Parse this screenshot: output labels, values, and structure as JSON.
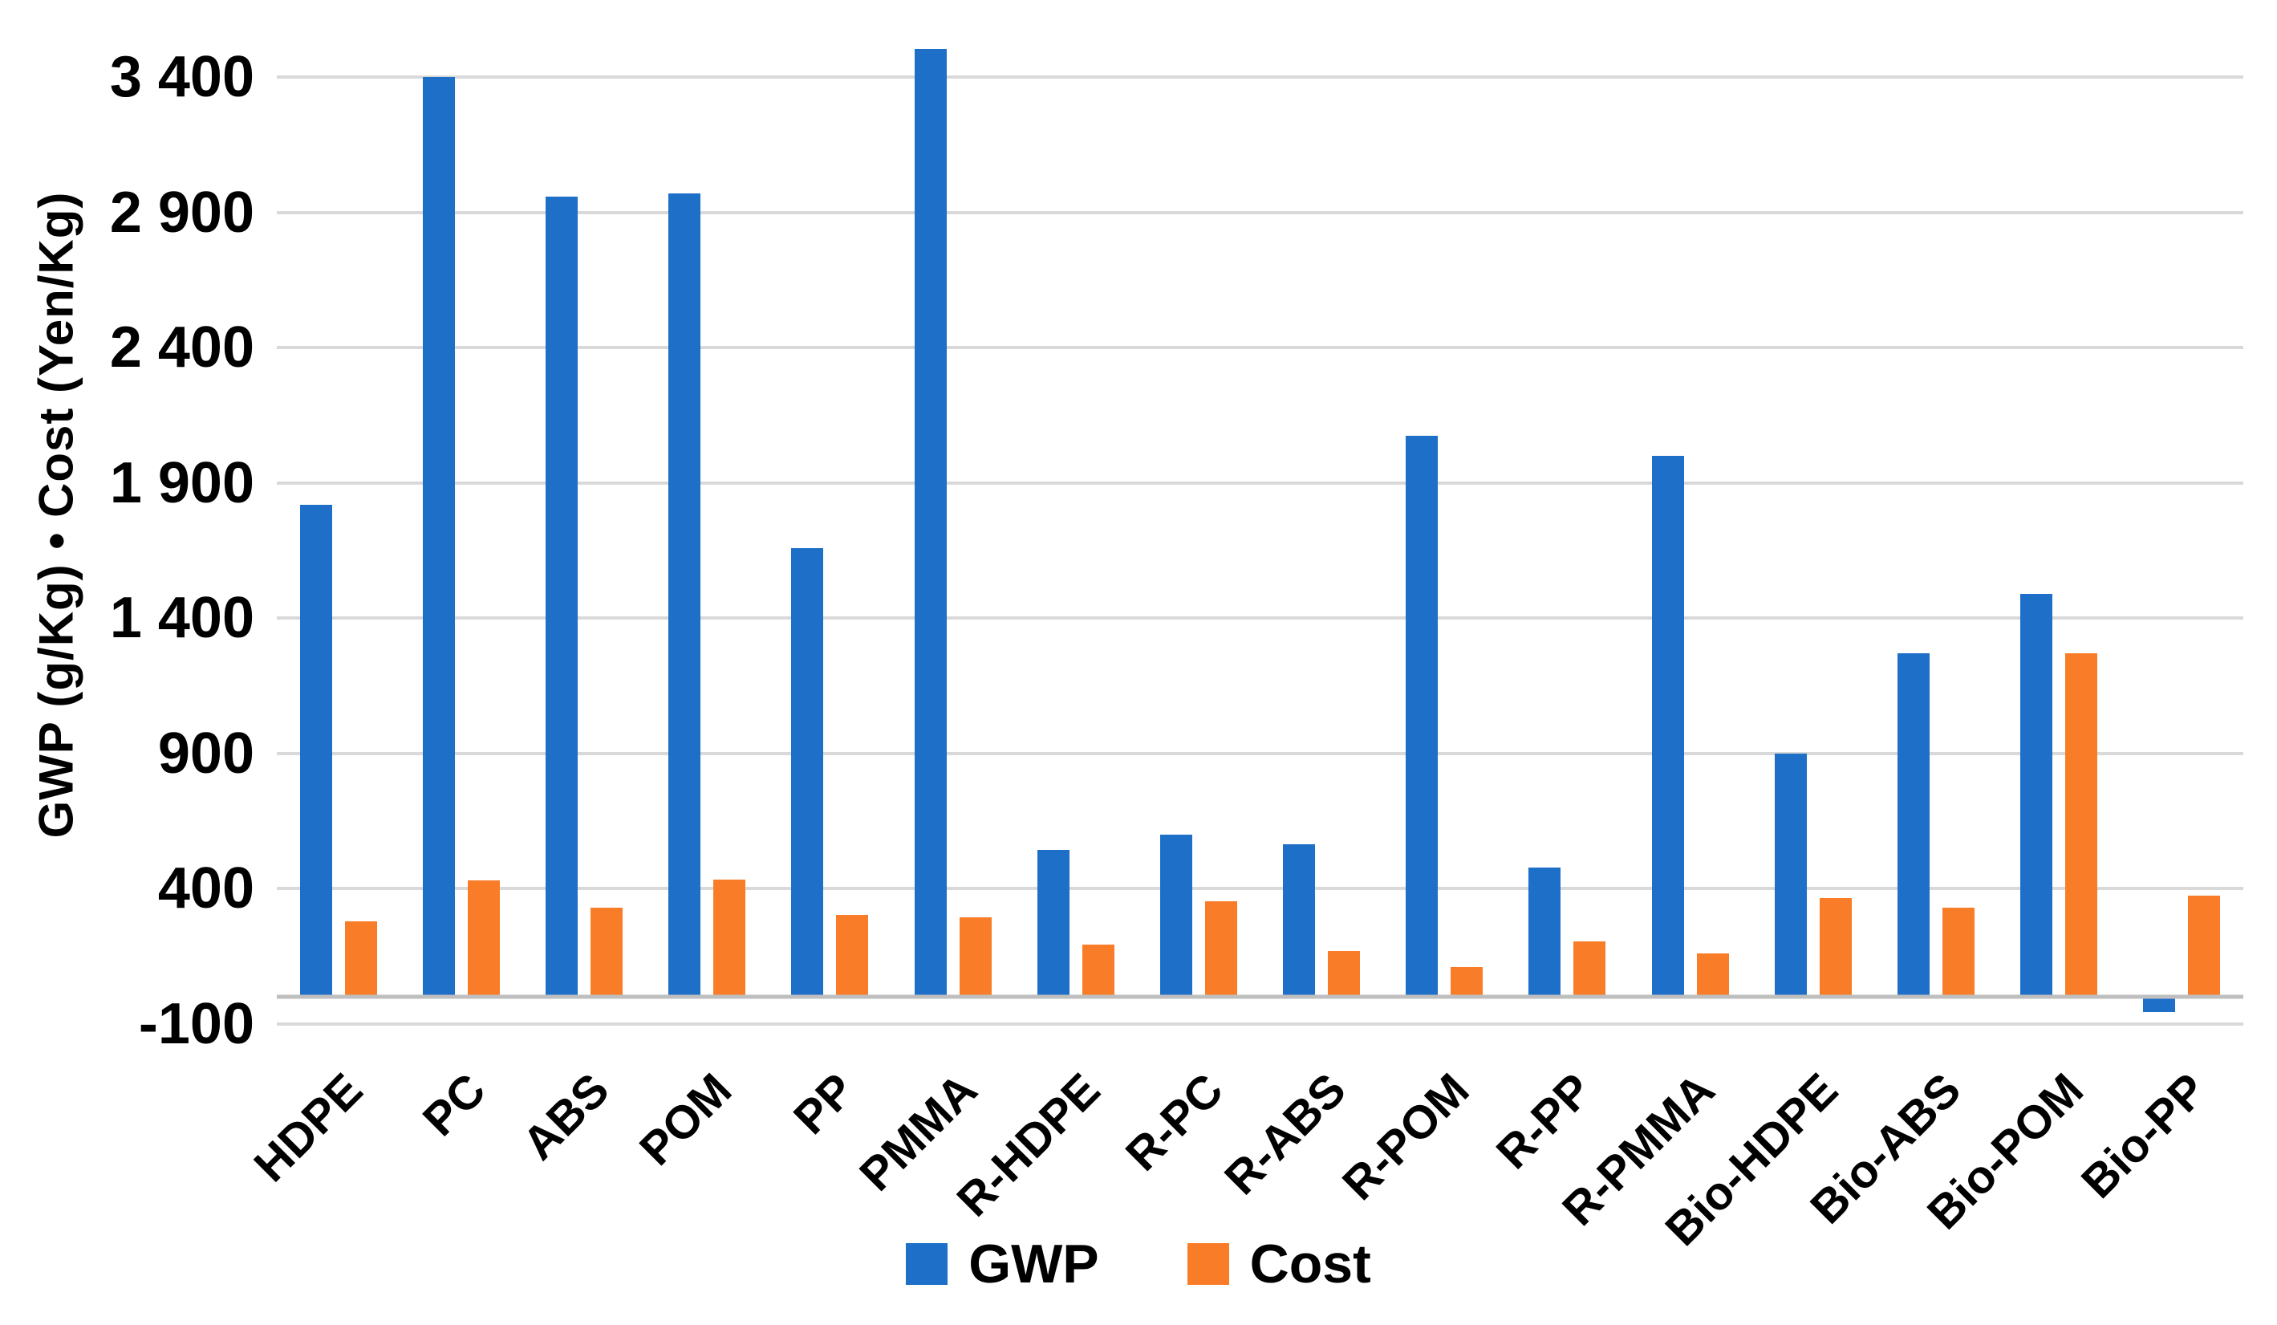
{
  "chart_data": {
    "type": "bar",
    "title": "",
    "ylabel": "GWP (g/Kg) • Cost (Yen/Kg)",
    "xlabel": "",
    "ylim": [
      -100,
      3650
    ],
    "grid": true,
    "legend_position": "bottom-center",
    "y_ticks": [
      {
        "value": 3400,
        "label": "3 400"
      },
      {
        "value": 2900,
        "label": "2 900"
      },
      {
        "value": 2400,
        "label": "2 400"
      },
      {
        "value": 1900,
        "label": "1 900"
      },
      {
        "value": 1400,
        "label": "1 400"
      },
      {
        "value": 900,
        "label": "900"
      },
      {
        "value": 400,
        "label": "400"
      },
      {
        "value": -100,
        "label": "-100"
      }
    ],
    "zero_axis_value": 0,
    "categories": [
      "HDPE",
      "PC",
      "ABS",
      "POM",
      "PP",
      "PMMA",
      "R-HDPE",
      "R-PC",
      "R-ABS",
      "R-POM",
      "R-PP",
      "R-PMMA",
      "Bio-HDPE",
      "Bio-ABS",
      "Bio-POM",
      "Bio-PP"
    ],
    "series": [
      {
        "name": "GWP",
        "color": "#1e6fc8",
        "values": [
          1820,
          3400,
          2960,
          2970,
          1660,
          3505,
          545,
          600,
          565,
          2075,
          480,
          2000,
          900,
          1270,
          1490,
          -55
        ]
      },
      {
        "name": "Cost",
        "color": "#f97d28",
        "values": [
          280,
          430,
          330,
          435,
          305,
          295,
          195,
          355,
          170,
          110,
          205,
          160,
          365,
          330,
          1270,
          375
        ]
      }
    ],
    "gridline_color": "#d9d9d9",
    "axisline_color": "#bfbfbf"
  },
  "legend": {
    "gwp_label": "GWP",
    "cost_label": "Cost"
  }
}
